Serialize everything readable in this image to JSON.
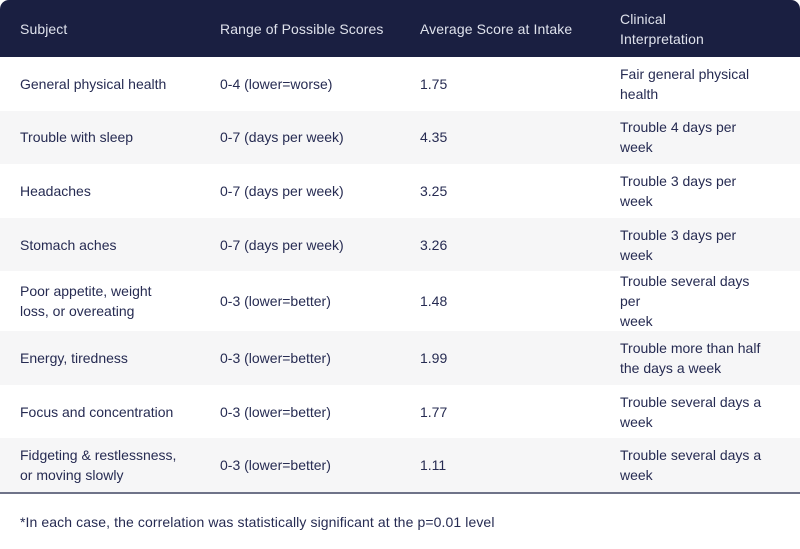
{
  "chart_data": {
    "type": "table",
    "columns": [
      "Subject",
      "Range of Possible Scores",
      "Average Score at Intake",
      "Clinical Interpretation"
    ],
    "rows": [
      [
        "General physical health",
        "0-4 (lower=worse)",
        1.75,
        "Fair general physical health"
      ],
      [
        "Trouble with sleep",
        "0-7 (days per week)",
        4.35,
        "Trouble 4 days per week"
      ],
      [
        "Headaches",
        "0-7 (days per week)",
        3.25,
        "Trouble 3 days per week"
      ],
      [
        "Stomach aches",
        "0-7 (days per week)",
        3.26,
        "Trouble 3 days per week"
      ],
      [
        "Poor appetite, weight loss, or overeating",
        "0-3 (lower=better)",
        1.48,
        "Trouble several days per week"
      ],
      [
        "Energy, tiredness",
        "0-3 (lower=better)",
        1.99,
        "Trouble more than half the days a week"
      ],
      [
        "Focus and concentration",
        "0-3 (lower=better)",
        1.77,
        "Trouble several days a week"
      ],
      [
        "Fidgeting & restlessness, or moving slowly",
        "0-3 (lower=better)",
        1.11,
        "Trouble several days a week"
      ]
    ],
    "footnote": "*In each case, the correlation was statistically significant at the p=0.01 level"
  },
  "table": {
    "header": {
      "subject": "Subject",
      "range": "Range of Possible Scores",
      "avg": "Average Score at Intake",
      "interp": "Clinical\nInterpretation"
    },
    "rows": [
      {
        "subject": "General physical health",
        "range": "0-4 (lower=worse)",
        "avg": "1.75",
        "interp": "Fair general physical\nhealth"
      },
      {
        "subject": "Trouble with sleep",
        "range": "0-7 (days per week)",
        "avg": "4.35",
        "interp": "Trouble 4 days per week"
      },
      {
        "subject": "Headaches",
        "range": "0-7 (days per week)",
        "avg": "3.25",
        "interp": "Trouble 3 days per week"
      },
      {
        "subject": "Stomach aches",
        "range": "0-7 (days per week)",
        "avg": "3.26",
        "interp": "Trouble 3 days per week"
      },
      {
        "subject": "Poor appetite, weight\nloss, or overeating",
        "range": "0-3 (lower=better)",
        "avg": "1.48",
        "interp": "Trouble several days per\nweek"
      },
      {
        "subject": "Energy, tiredness",
        "range": "0-3 (lower=better)",
        "avg": "1.99",
        "interp": "Trouble more than half\nthe days a week"
      },
      {
        "subject": "Focus and concentration",
        "range": "0-3 (lower=better)",
        "avg": "1.77",
        "interp": "Trouble several days a\nweek"
      },
      {
        "subject": "Fidgeting & restlessness,\nor moving slowly",
        "range": "0-3 (lower=better)",
        "avg": "1.11",
        "interp": "Trouble several days a\nweek"
      }
    ],
    "footnote": "*In each case, the correlation was statistically significant at the p=0.01 level"
  },
  "colors": {
    "header_bg": "#1a1f41",
    "header_text": "#dfe2ec",
    "body_text": "#262b52",
    "row_alt_bg": "#f6f6f7",
    "divider": "#6f7389"
  }
}
